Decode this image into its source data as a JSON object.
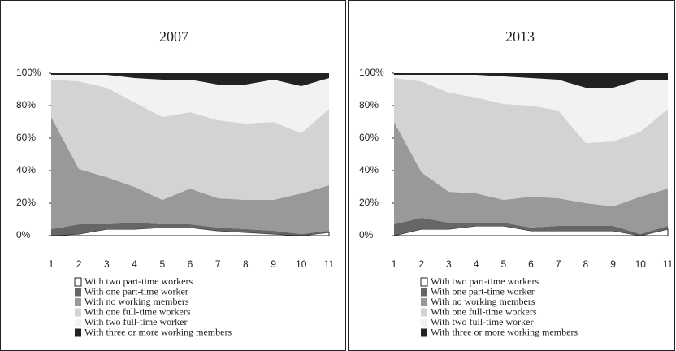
{
  "chart_data": [
    {
      "type": "area",
      "stacked": true,
      "title": "2007",
      "x": [
        1,
        2,
        3,
        4,
        5,
        6,
        7,
        8,
        9,
        10,
        11
      ],
      "xlim": [
        1,
        11
      ],
      "xticks": [
        1,
        2,
        3,
        4,
        5,
        6,
        7,
        8,
        9,
        10,
        11
      ],
      "ylim": [
        0,
        100
      ],
      "yticks": [
        {
          "value": 0,
          "label": "0%"
        },
        {
          "value": 20,
          "label": "20%"
        },
        {
          "value": 40,
          "label": "40%"
        },
        {
          "value": 60,
          "label": "60%"
        },
        {
          "value": 80,
          "label": "80%"
        },
        {
          "value": 100,
          "label": "100%"
        }
      ],
      "series": [
        {
          "name": "With two part-time workers",
          "color": "#ffffff",
          "values": [
            0,
            1,
            4,
            4,
            5,
            5,
            3,
            2,
            1,
            0,
            2
          ]
        },
        {
          "name": "With one part-time worker",
          "color": "#666666",
          "values": [
            4,
            6,
            3,
            4,
            2,
            2,
            2,
            2,
            2,
            1,
            1
          ]
        },
        {
          "name": "With no working members",
          "color": "#999999",
          "values": [
            69,
            34,
            29,
            22,
            15,
            22,
            18,
            18,
            19,
            25,
            28
          ]
        },
        {
          "name": "With one full-time workers",
          "color": "#d3d3d3",
          "values": [
            23,
            54,
            55,
            52,
            51,
            47,
            48,
            47,
            48,
            37,
            47
          ]
        },
        {
          "name": "With two full-time worker",
          "color": "#f2f2f2",
          "values": [
            3,
            4,
            8,
            15,
            23,
            20,
            22,
            24,
            26,
            29,
            19
          ]
        },
        {
          "name": "With three or more working members",
          "color": "#222222",
          "values": [
            1,
            1,
            1,
            3,
            4,
            4,
            7,
            7,
            4,
            8,
            3
          ]
        }
      ]
    },
    {
      "type": "area",
      "stacked": true,
      "title": "2013",
      "x": [
        1,
        2,
        3,
        4,
        5,
        6,
        7,
        8,
        9,
        10,
        11
      ],
      "xlim": [
        1,
        11
      ],
      "xticks": [
        1,
        2,
        3,
        4,
        5,
        6,
        7,
        8,
        9,
        10,
        11
      ],
      "ylim": [
        0,
        100
      ],
      "yticks": [
        {
          "value": 0,
          "label": "0%"
        },
        {
          "value": 20,
          "label": "20%"
        },
        {
          "value": 40,
          "label": "40%"
        },
        {
          "value": 60,
          "label": "60%"
        },
        {
          "value": 80,
          "label": "80%"
        },
        {
          "value": 100,
          "label": "100%"
        }
      ],
      "series": [
        {
          "name": "With two part-time workers",
          "color": "#ffffff",
          "values": [
            0,
            4,
            4,
            6,
            6,
            3,
            3,
            3,
            3,
            0,
            4
          ]
        },
        {
          "name": "With one part-time worker",
          "color": "#666666",
          "values": [
            7,
            7,
            4,
            2,
            2,
            2,
            3,
            3,
            3,
            1,
            2
          ]
        },
        {
          "name": "With no working members",
          "color": "#999999",
          "values": [
            63,
            28,
            19,
            18,
            14,
            19,
            17,
            14,
            12,
            23,
            23
          ]
        },
        {
          "name": "With one full-time workers",
          "color": "#d3d3d3",
          "values": [
            27,
            56,
            61,
            59,
            59,
            56,
            54,
            37,
            40,
            40,
            49
          ]
        },
        {
          "name": "With two full-time worker",
          "color": "#f2f2f2",
          "values": [
            2,
            4,
            11,
            14,
            17,
            17,
            19,
            34,
            33,
            32,
            18
          ]
        },
        {
          "name": "With three or more working members",
          "color": "#222222",
          "values": [
            1,
            1,
            1,
            1,
            2,
            3,
            4,
            9,
            9,
            4,
            4
          ]
        }
      ]
    }
  ]
}
